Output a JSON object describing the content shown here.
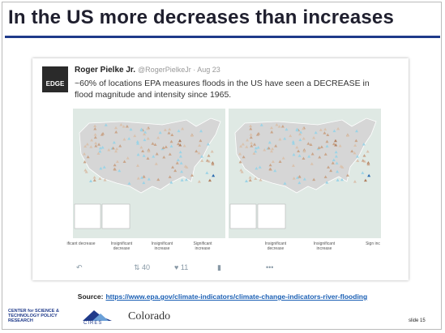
{
  "header": {
    "title": "In the US more decreases than increases"
  },
  "tweet": {
    "avatar": "EDGE",
    "author": "Roger Pielke Jr.",
    "handle": "@RogerPielkeJr · Aug 23",
    "text": "~60% of locations EPA measures floods in the US have seen a DECREASE in flood magnitude and intensity since 1965.",
    "legend_left": [
      "ificant decrease",
      "Insignificant decrease",
      "Insignificant increase",
      "Significant increase"
    ],
    "legend_right": [
      "Insignificant decrease",
      "Insignificant increase",
      "Sign inc"
    ],
    "retweets": "40",
    "likes": "11",
    "more": "•••"
  },
  "source": {
    "label": "Source:",
    "url": "https://www.epa.gov/climate-indicators/climate-change-indicators-river-flooding"
  },
  "footer": {
    "logo_cstpr": "CENTER for SCIENCE & TECHNOLOGY POLICY RESEARCH",
    "logo_cires": "CIRES",
    "logo_colorado": "Colorado",
    "slide": "slide 15"
  }
}
